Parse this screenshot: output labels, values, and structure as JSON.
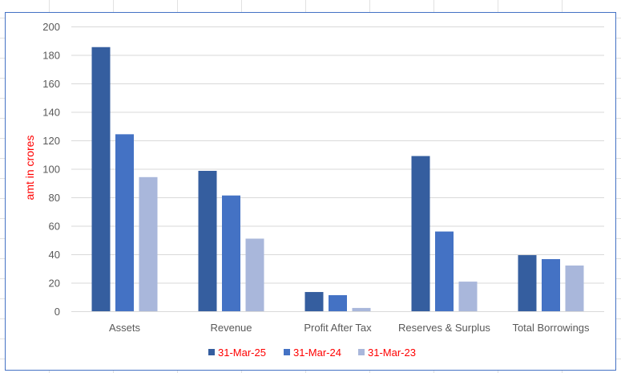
{
  "chart_data": {
    "type": "bar",
    "title": "",
    "xlabel": "",
    "ylabel": "amt in crores",
    "ylim": [
      0,
      200
    ],
    "yticks": [
      0,
      20,
      40,
      60,
      80,
      100,
      120,
      140,
      160,
      180,
      200
    ],
    "grid": true,
    "legend": "bottom",
    "categories": [
      "Assets",
      "Revenue",
      "Profit After Tax",
      "Reserves & Surplus",
      "Total Borrowings"
    ],
    "series": [
      {
        "name": "31-Mar-25",
        "color": "#355e9f",
        "values": [
          185.5,
          98.6,
          13.5,
          109,
          39.4
        ]
      },
      {
        "name": "31-Mar-24",
        "color": "#4472c4",
        "values": [
          124.3,
          81.3,
          11.3,
          56,
          36.6
        ]
      },
      {
        "name": "31-Mar-23",
        "color": "#a9b7db",
        "values": [
          94.2,
          51,
          2.3,
          20.8,
          32.1
        ]
      }
    ]
  }
}
